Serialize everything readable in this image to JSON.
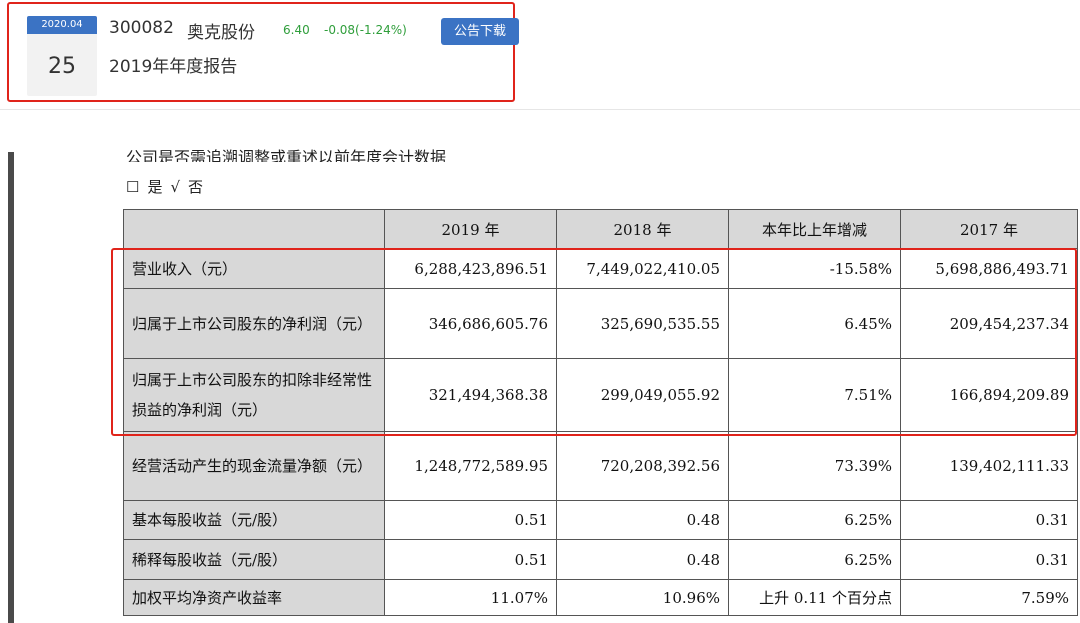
{
  "announcement": {
    "date_month": "2020.04",
    "date_day": "25",
    "stock_code": "300082",
    "stock_name": "奥克股份",
    "price": "6.40",
    "change": "-0.08(-1.24%)",
    "download_label": "公告下载",
    "title": "2019年年度报告"
  },
  "document": {
    "cut_text": "公司是否需追溯调整或重述以前年度会计数据",
    "choice": {
      "box": "☐",
      "yes": "是",
      "check": "√",
      "no": "否"
    },
    "table": {
      "headers": [
        "",
        "2019 年",
        "2018 年",
        "本年比上年增减",
        "2017 年"
      ],
      "rows": [
        {
          "label": "营业收入（元）",
          "values": [
            "6,288,423,896.51",
            "7,449,022,410.05",
            "-15.58%",
            "5,698,886,493.71"
          ]
        },
        {
          "label": "归属于上市公司股东的净利润（元）",
          "values": [
            "346,686,605.76",
            "325,690,535.55",
            "6.45%",
            "209,454,237.34"
          ]
        },
        {
          "label": "归属于上市公司股东的扣除非经常性损益的净利润（元）",
          "values": [
            "321,494,368.38",
            "299,049,055.92",
            "7.51%",
            "166,894,209.89"
          ]
        },
        {
          "label": "经营活动产生的现金流量净额（元）",
          "values": [
            "1,248,772,589.95",
            "720,208,392.56",
            "73.39%",
            "139,402,111.33"
          ]
        },
        {
          "label": "基本每股收益（元/股）",
          "values": [
            "0.51",
            "0.48",
            "6.25%",
            "0.31"
          ]
        },
        {
          "label": "稀释每股收益（元/股）",
          "values": [
            "0.51",
            "0.48",
            "6.25%",
            "0.31"
          ]
        },
        {
          "label": "加权平均净资产收益率",
          "values": [
            "11.07%",
            "10.96%",
            "上升 0.11 个百分点",
            "7.59%"
          ]
        }
      ]
    }
  },
  "colors": {
    "accent_blue": "#3b73c4",
    "highlight_red": "#e0241b",
    "stock_green": "#2f9e3b"
  }
}
